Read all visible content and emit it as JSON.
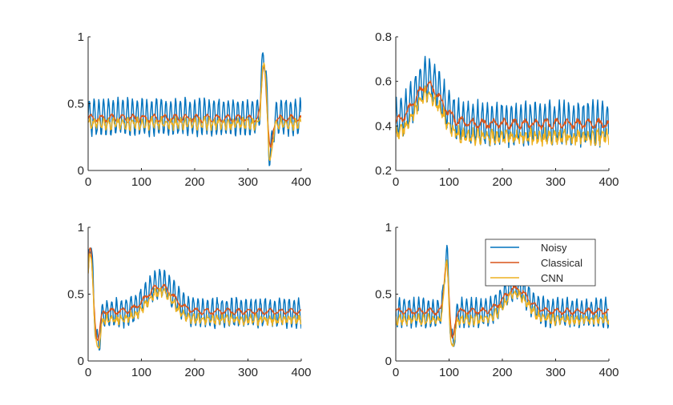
{
  "colors": {
    "noisy": "#0072BD",
    "classical": "#D95319",
    "cnn": "#EDB120",
    "axis": "#262626"
  },
  "chart_data": [
    {
      "type": "line",
      "xlim": [
        0,
        400
      ],
      "ylim": [
        0,
        1
      ],
      "xticks": [
        0,
        100,
        200,
        300,
        400
      ],
      "yticks": [
        0,
        0.5,
        1
      ],
      "ytick_labels": [
        "0",
        "0.5",
        "1"
      ],
      "grid": false,
      "legend": null,
      "baseline": {
        "noisy": 0.4,
        "classical": 0.39,
        "cnn": 0.35
      },
      "noise_amplitude": 0.13,
      "noise_period": 9,
      "features": [
        {
          "type": "spike",
          "center": 330,
          "width": 4,
          "height": 0.5
        },
        {
          "type": "spike",
          "center": 342,
          "width": 4,
          "height": -0.28
        }
      ],
      "series": [
        {
          "name": "Noisy",
          "color_key": "noisy"
        },
        {
          "name": "Classical",
          "color_key": "classical"
        },
        {
          "name": "CNN",
          "color_key": "cnn"
        }
      ]
    },
    {
      "type": "line",
      "xlim": [
        0,
        400
      ],
      "ylim": [
        0.2,
        0.8
      ],
      "xticks": [
        0,
        100,
        200,
        300,
        400
      ],
      "yticks": [
        0.2,
        0.4,
        0.6,
        0.8
      ],
      "ytick_labels": [
        "0.2",
        "0.4",
        "0.6",
        "0.8"
      ],
      "grid": false,
      "legend": null,
      "baseline": {
        "noisy": 0.41,
        "classical": 0.41,
        "cnn": 0.35
      },
      "noise_amplitude": 0.09,
      "noise_period": 9,
      "features": [
        {
          "type": "bump",
          "center": 60,
          "width": 25,
          "height": 0.2
        }
      ],
      "series": [
        {
          "name": "Noisy",
          "color_key": "noisy"
        },
        {
          "name": "Classical",
          "color_key": "classical"
        },
        {
          "name": "CNN",
          "color_key": "cnn"
        }
      ]
    },
    {
      "type": "line",
      "xlim": [
        0,
        400
      ],
      "ylim": [
        0,
        1
      ],
      "xticks": [
        0,
        100,
        200,
        300,
        400
      ],
      "yticks": [
        0,
        0.5,
        1
      ],
      "ytick_labels": [
        "0",
        "0.5",
        "1"
      ],
      "grid": false,
      "legend": null,
      "baseline": {
        "noisy": 0.36,
        "classical": 0.37,
        "cnn": 0.31
      },
      "noise_amplitude": 0.1,
      "noise_period": 9,
      "features": [
        {
          "type": "spike",
          "center": 4,
          "width": 4,
          "height": 0.55
        },
        {
          "type": "spike",
          "center": 18,
          "width": 4,
          "height": -0.25
        },
        {
          "type": "bump",
          "center": 135,
          "width": 25,
          "height": 0.22
        }
      ],
      "series": [
        {
          "name": "Noisy",
          "color_key": "noisy"
        },
        {
          "name": "Classical",
          "color_key": "classical"
        },
        {
          "name": "CNN",
          "color_key": "cnn"
        }
      ]
    },
    {
      "type": "line",
      "xlim": [
        0,
        400
      ],
      "ylim": [
        0,
        1
      ],
      "xticks": [
        0,
        100,
        200,
        300,
        400
      ],
      "yticks": [
        0,
        0.5,
        1
      ],
      "ytick_labels": [
        "0",
        "0.5",
        "1"
      ],
      "grid": false,
      "legend": "top-right",
      "baseline": {
        "noisy": 0.36,
        "classical": 0.37,
        "cnn": 0.31
      },
      "noise_amplitude": 0.1,
      "noise_period": 9,
      "features": [
        {
          "type": "spike",
          "center": 95,
          "width": 4,
          "height": 0.45
        },
        {
          "type": "spike",
          "center": 106,
          "width": 4,
          "height": -0.25
        },
        {
          "type": "bump",
          "center": 225,
          "width": 22,
          "height": 0.2
        }
      ],
      "series": [
        {
          "name": "Noisy",
          "color_key": "noisy"
        },
        {
          "name": "Classical",
          "color_key": "classical"
        },
        {
          "name": "CNN",
          "color_key": "cnn"
        }
      ]
    }
  ]
}
